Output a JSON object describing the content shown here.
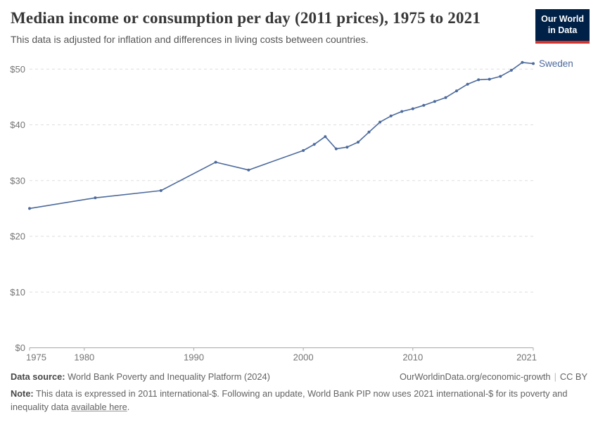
{
  "header": {
    "title": "Median income or consumption per day (2011 prices), 1975 to 2021",
    "subtitle": "This data is adjusted for inflation and differences in living costs between countries.",
    "logo": {
      "line1": "Our World",
      "line2": "in Data",
      "bg_color": "#002147",
      "bar_color": "#D0342C"
    }
  },
  "chart_data": {
    "type": "line",
    "series": [
      {
        "name": "Sweden",
        "color": "#4C6A9C",
        "x": [
          1975,
          1981,
          1987,
          1992,
          1995,
          2000,
          2001,
          2002,
          2003,
          2004,
          2005,
          2006,
          2007,
          2008,
          2009,
          2010,
          2011,
          2012,
          2013,
          2014,
          2015,
          2016,
          2017,
          2018,
          2019,
          2020,
          2021
        ],
        "values": [
          25.0,
          26.9,
          28.2,
          33.3,
          31.9,
          35.4,
          36.5,
          37.9,
          35.7,
          36.0,
          36.9,
          38.7,
          40.5,
          41.6,
          42.4,
          42.9,
          43.5,
          44.2,
          44.9,
          46.1,
          47.3,
          48.1,
          48.2,
          48.7,
          49.8,
          51.2,
          51.0
        ]
      }
    ],
    "title": "Median income or consumption per day (2011 prices), 1975 to 2021",
    "xlabel": "",
    "ylabel": "",
    "xlim": [
      1975,
      2021
    ],
    "ylim": [
      0,
      53
    ],
    "x_ticks": [
      1975,
      1980,
      1990,
      2000,
      2010,
      2021
    ],
    "y_ticks": [
      0,
      10,
      20,
      30,
      40,
      50
    ],
    "y_tick_prefix": "$",
    "grid": "horizontal-dashed",
    "legend_position": "line-end-label",
    "grid_color": "#dedede",
    "axis_color": "#a8a8a8"
  },
  "footer": {
    "source_label": "Data source:",
    "source_text": " World Bank Poverty and Inequality Platform (2024)",
    "attribution": "OurWorldinData.org/economic-growth",
    "divider": "|",
    "license": "CC BY",
    "note_label": "Note:",
    "note_text": " This data is expressed in 2011 international-$. Following an update, World Bank PIP now uses 2021 international-$ for its poverty and inequality data ",
    "note_link": "available here",
    "note_period": "."
  }
}
